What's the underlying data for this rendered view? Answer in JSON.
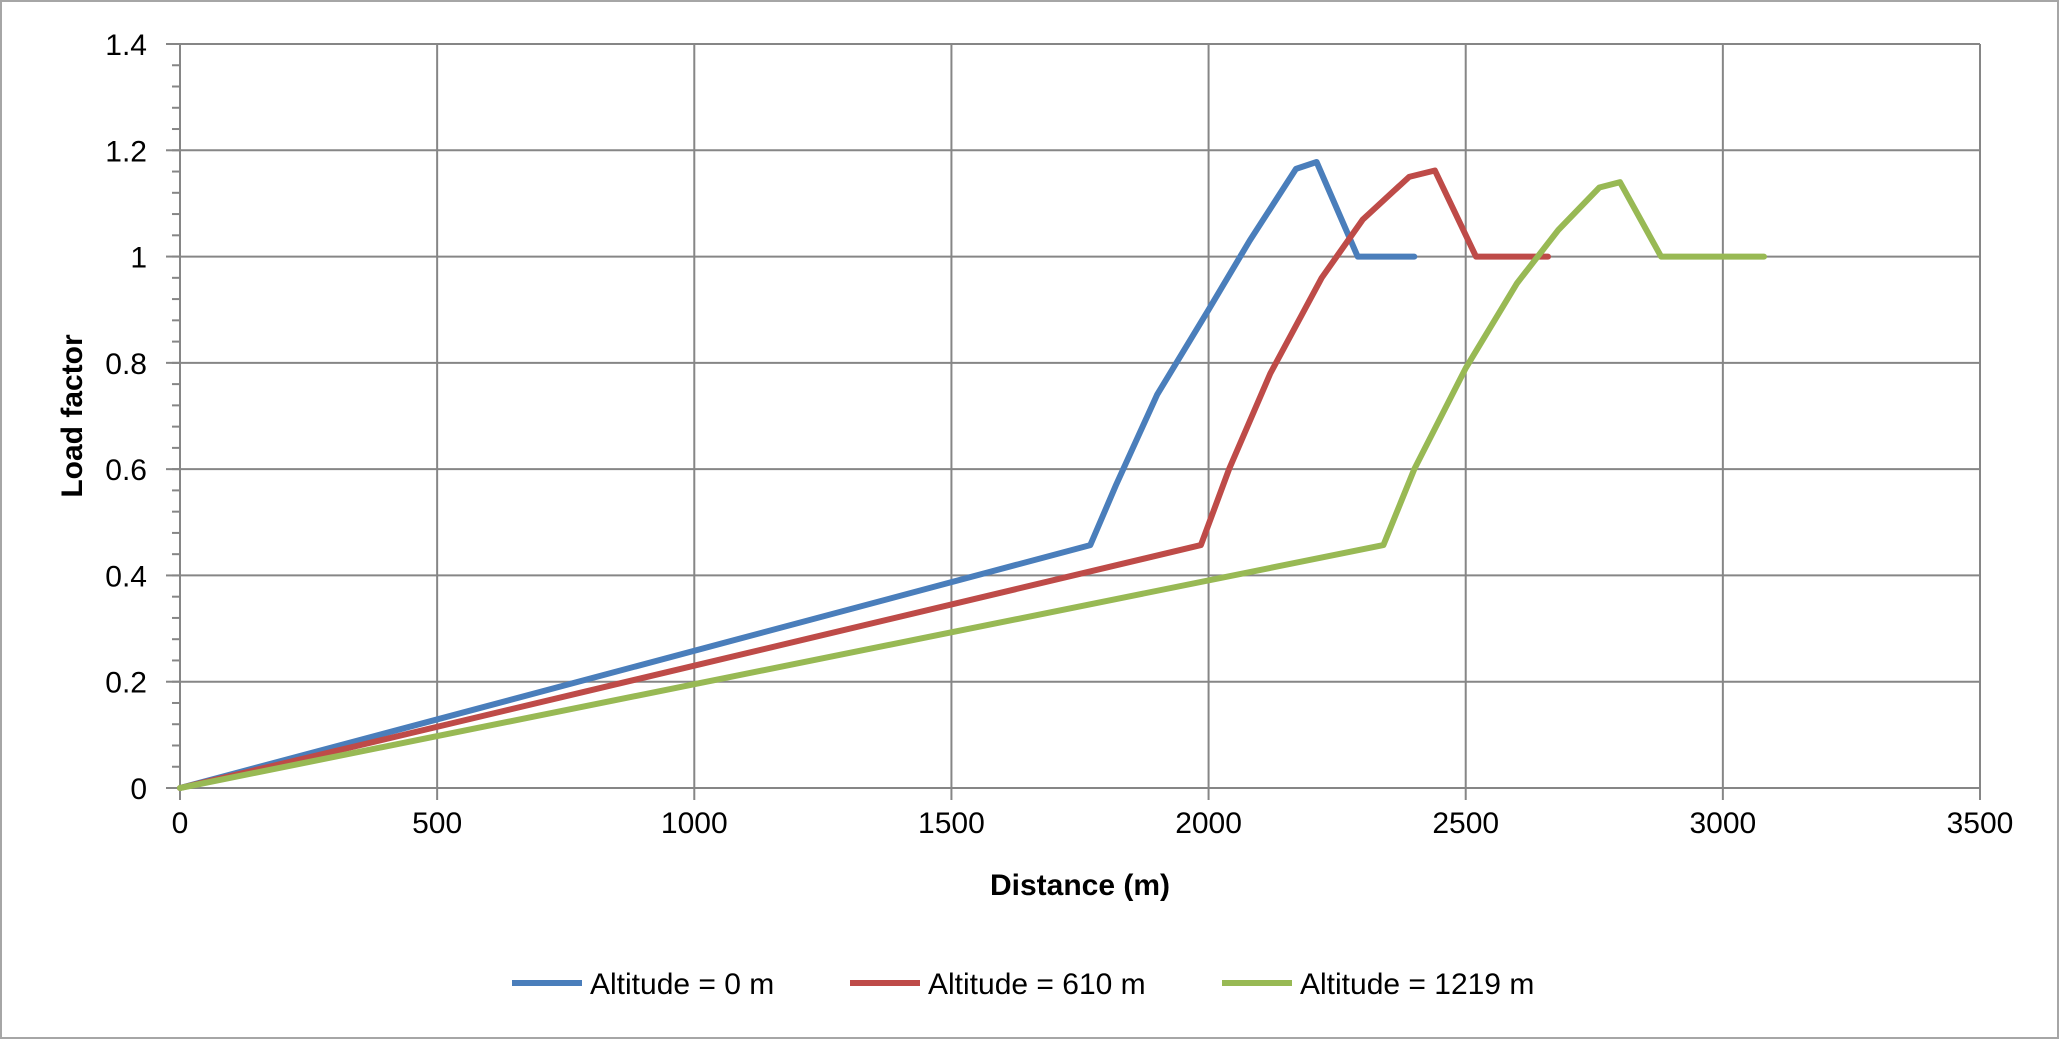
{
  "chart_data": {
    "type": "line",
    "xlabel": "Distance (m)",
    "ylabel": "Load factor",
    "xlim": [
      0,
      3500
    ],
    "ylim": [
      0,
      1.4
    ],
    "x_ticks": [
      0,
      500,
      1000,
      1500,
      2000,
      2500,
      3000,
      3500
    ],
    "y_ticks": [
      0,
      0.2,
      0.4,
      0.6,
      0.8,
      1,
      1.2,
      1.4
    ],
    "x_tick_labels": [
      "0",
      "500",
      "1000",
      "1500",
      "2000",
      "2500",
      "3000",
      "3500"
    ],
    "y_tick_labels": [
      "0",
      "0.2",
      "0.4",
      "0.6",
      "0.8",
      "1",
      "1.2",
      "1.4"
    ],
    "grid": true,
    "legend_position": "bottom",
    "series": [
      {
        "name": "Altitude = 0 m",
        "color": "#4a7ebb",
        "points": [
          [
            0,
            0
          ],
          [
            1770,
            0.457
          ],
          [
            1820,
            0.57
          ],
          [
            1900,
            0.74
          ],
          [
            2000,
            0.9
          ],
          [
            2080,
            1.03
          ],
          [
            2170,
            1.165
          ],
          [
            2210,
            1.178
          ],
          [
            2290,
            1.0
          ],
          [
            2400,
            1.0
          ]
        ]
      },
      {
        "name": "Altitude = 610 m",
        "color": "#be4b48",
        "points": [
          [
            0,
            0
          ],
          [
            1985,
            0.457
          ],
          [
            2040,
            0.6
          ],
          [
            2120,
            0.78
          ],
          [
            2220,
            0.96
          ],
          [
            2300,
            1.07
          ],
          [
            2390,
            1.15
          ],
          [
            2440,
            1.162
          ],
          [
            2520,
            1.0
          ],
          [
            2660,
            1.0
          ]
        ]
      },
      {
        "name": "Altitude = 1219 m",
        "color": "#98b954",
        "points": [
          [
            0,
            0
          ],
          [
            2340,
            0.457
          ],
          [
            2400,
            0.6
          ],
          [
            2500,
            0.79
          ],
          [
            2600,
            0.95
          ],
          [
            2680,
            1.05
          ],
          [
            2760,
            1.13
          ],
          [
            2800,
            1.14
          ],
          [
            2880,
            1.0
          ],
          [
            3080,
            1.0
          ]
        ]
      }
    ]
  }
}
